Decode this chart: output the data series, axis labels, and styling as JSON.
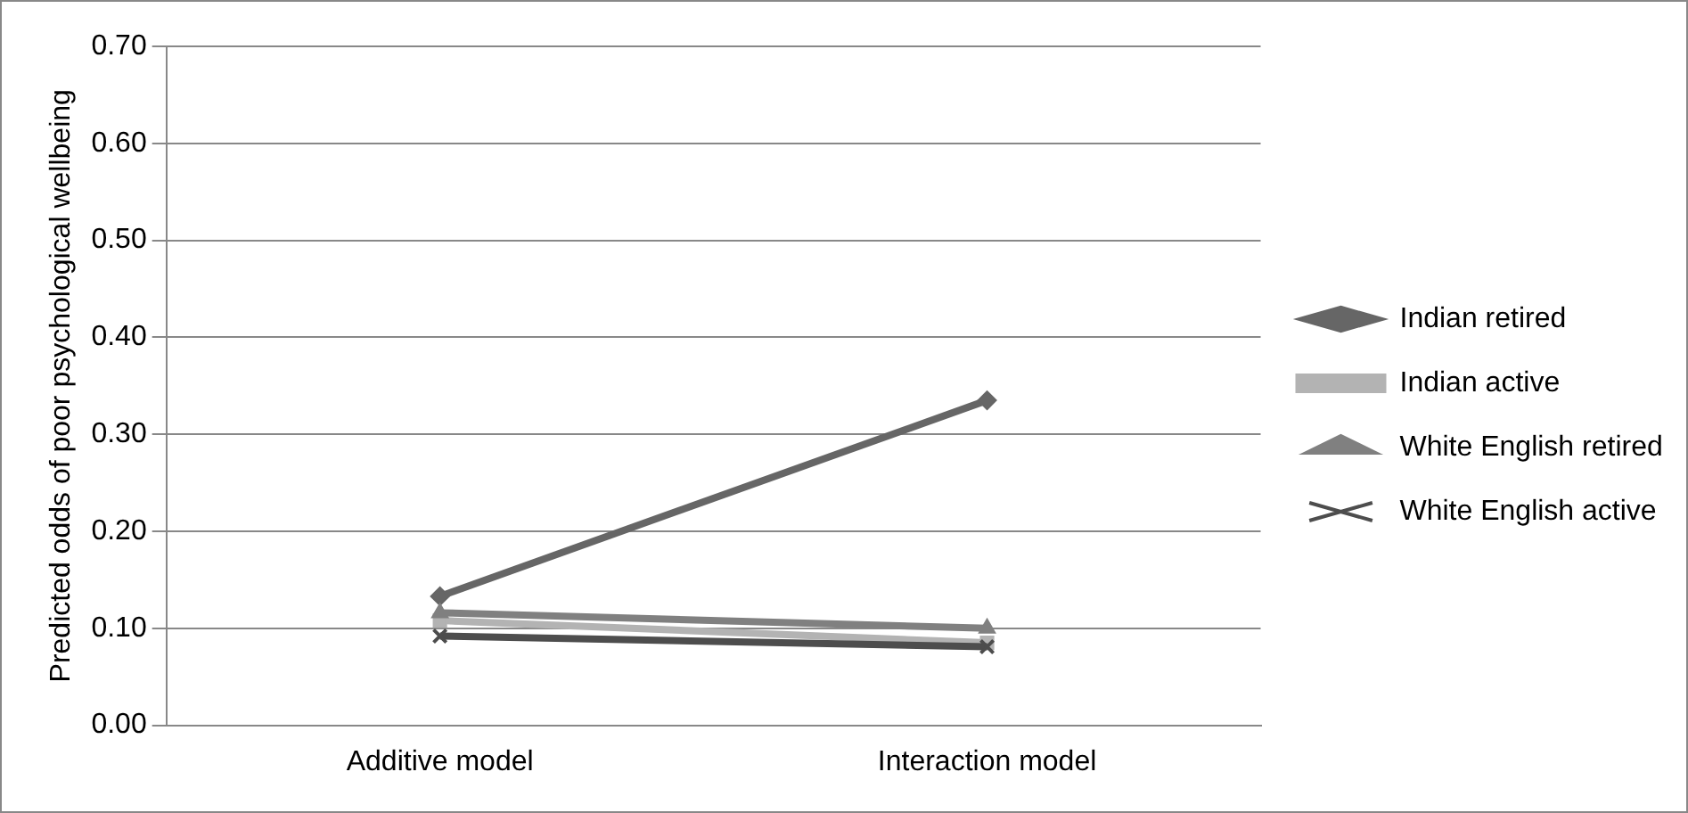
{
  "chart_data": {
    "type": "line",
    "ylabel": "Predicted odds of poor psychological wellbeing",
    "categories": [
      "Additive model",
      "Interaction model"
    ],
    "series": [
      {
        "name": "Indian retired",
        "color": "#666666",
        "marker": "diamond",
        "values": [
          0.133,
          0.335
        ]
      },
      {
        "name": "Indian active",
        "color": "#b3b3b3",
        "marker": "square",
        "values": [
          0.108,
          0.085
        ]
      },
      {
        "name": "White English retired",
        "color": "#808080",
        "marker": "triangle",
        "values": [
          0.116,
          0.1
        ]
      },
      {
        "name": "White English active",
        "color": "#4d4d4d",
        "marker": "cross",
        "values": [
          0.092,
          0.081
        ]
      }
    ],
    "ylim": [
      0,
      0.7
    ],
    "yticks": [
      {
        "value": 0,
        "label": "0.00"
      },
      {
        "value": 0.1,
        "label": "0.10"
      },
      {
        "value": 0.2,
        "label": "0.20"
      },
      {
        "value": 0.3,
        "label": "0.30"
      },
      {
        "value": 0.4,
        "label": "0.40"
      },
      {
        "value": 0.5,
        "label": "0.50"
      },
      {
        "value": 0.6,
        "label": "0.60"
      },
      {
        "value": 0.7,
        "label": "0.70"
      }
    ],
    "grid": "y",
    "legend": "right",
    "line_style": "solid"
  }
}
